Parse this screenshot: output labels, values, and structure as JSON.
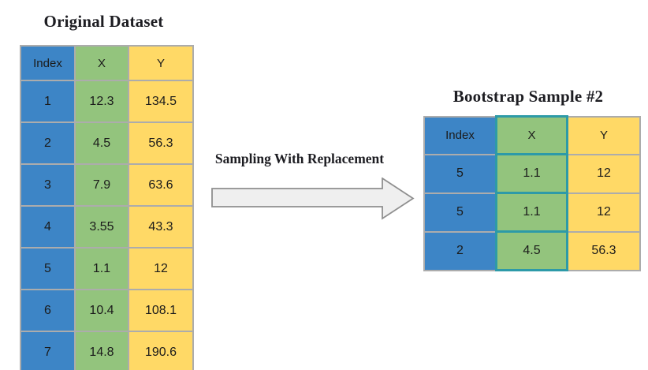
{
  "original_table": {
    "title": "Original Dataset",
    "headers": [
      "Index",
      "X",
      "Y"
    ],
    "rows": [
      [
        "1",
        "12.3",
        "134.5"
      ],
      [
        "2",
        "4.5",
        "56.3"
      ],
      [
        "3",
        "7.9",
        "63.6"
      ],
      [
        "4",
        "3.55",
        "43.3"
      ],
      [
        "5",
        "1.1",
        "12"
      ],
      [
        "6",
        "10.4",
        "108.1"
      ],
      [
        "7",
        "14.8",
        "190.6"
      ]
    ]
  },
  "bootstrap_table": {
    "title": "Bootstrap Sample #2",
    "headers": [
      "Index",
      "X",
      "Y"
    ],
    "rows": [
      [
        "5",
        "1.1",
        "12"
      ],
      [
        "5",
        "1.1",
        "12"
      ],
      [
        "2",
        "4.5",
        "56.3"
      ]
    ]
  },
  "arrow": {
    "label": "Sampling With Replacement"
  },
  "colors": {
    "index_col": "#3d85c6",
    "x_col": "#93c47d",
    "y_col": "#ffd966",
    "grid_border": "#acacac",
    "x_highlight_border": "#2d9aa8",
    "arrow_fill": "#efefef",
    "arrow_border": "#8f8f8f"
  }
}
